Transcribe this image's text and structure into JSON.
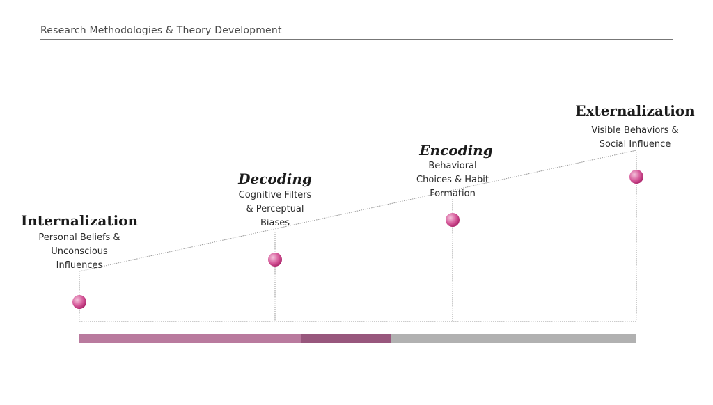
{
  "header": {
    "title": "Research Methodologies & Theory Development"
  },
  "stages": [
    {
      "title": "Internalization",
      "italic": false,
      "desc": [
        "Personal Beliefs &",
        "Unconscious",
        "Influences"
      ]
    },
    {
      "title": "Decoding",
      "italic": true,
      "desc": [
        "Cognitive Filters",
        "& Perceptual",
        "Biases"
      ]
    },
    {
      "title": "Encoding",
      "italic": true,
      "desc": [
        "Behavioral",
        "Choices & Habit",
        "Formation"
      ]
    },
    {
      "title": "Externalization",
      "italic": false,
      "desc": [
        "Visible Behaviors &",
        "Social Influence"
      ]
    }
  ],
  "colors": {
    "bar_segment_1": "#b97a9e",
    "bar_segment_2": "#98577d",
    "bar_segment_3": "#b1b1b1",
    "node_light": "#f4c4dc",
    "node_dark": "#b3206c"
  }
}
